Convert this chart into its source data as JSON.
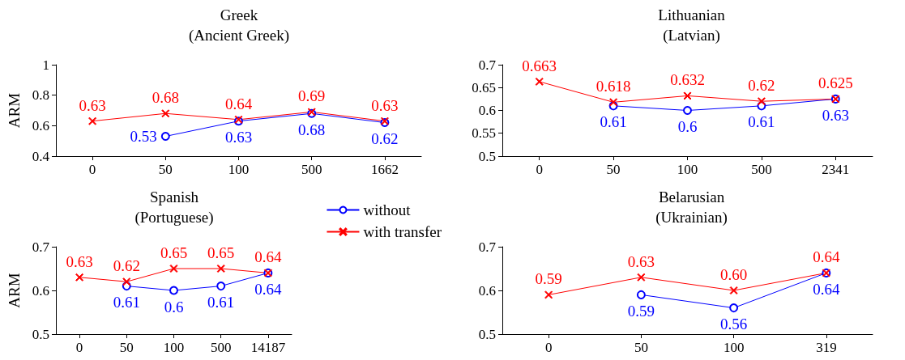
{
  "chart_data": [
    {
      "type": "line",
      "title": "Greek",
      "subtitle": "(Ancient Greek)",
      "ylabel": "ARM",
      "categories": [
        "0",
        "50",
        "100",
        "500",
        "1662"
      ],
      "ylim": [
        0.4,
        1
      ],
      "yticks": [
        0.4,
        0.6,
        0.8,
        1
      ],
      "grid": false,
      "legend": false,
      "series": [
        {
          "color": "#0000ff",
          "marker": "circle",
          "values": [
            null,
            0.53,
            0.63,
            0.68,
            0.62
          ],
          "value_labels": [
            null,
            "0.53",
            "0.63",
            "0.68",
            "0.62"
          ]
        },
        {
          "color": "#ff0000",
          "marker": "cross",
          "values": [
            0.63,
            0.68,
            0.64,
            0.69,
            0.63
          ],
          "value_labels": [
            "0.63",
            "0.68",
            "0.64",
            "0.69",
            "0.63"
          ]
        }
      ]
    },
    {
      "type": "line",
      "title": "Lithuanian",
      "subtitle": "(Latvian)",
      "categories": [
        "0",
        "50",
        "100",
        "500",
        "2341"
      ],
      "ylim": [
        0.5,
        0.7
      ],
      "yticks": [
        0.5,
        0.55,
        0.6,
        0.65,
        0.7
      ],
      "grid": false,
      "legend": false,
      "series": [
        {
          "color": "#0000ff",
          "marker": "circle",
          "values": [
            null,
            0.61,
            0.6,
            0.61,
            0.625
          ],
          "value_labels": [
            null,
            "0.61",
            "0.6",
            "0.61",
            "0.63"
          ]
        },
        {
          "color": "#ff0000",
          "marker": "cross",
          "values": [
            0.663,
            0.618,
            0.632,
            0.62,
            0.625
          ],
          "value_labels": [
            "0.663",
            "0.618",
            "0.632",
            "0.62",
            "0.625"
          ]
        }
      ]
    },
    {
      "type": "line",
      "title": "Spanish",
      "subtitle": "(Portuguese)",
      "ylabel": "ARM",
      "categories": [
        "0",
        "50",
        "100",
        "500",
        "14187"
      ],
      "ylim": [
        0.5,
        0.7
      ],
      "yticks": [
        0.5,
        0.6,
        0.7
      ],
      "grid": false,
      "legend": "right",
      "series": [
        {
          "name": "without",
          "color": "#0000ff",
          "marker": "circle",
          "values": [
            null,
            0.61,
            0.6,
            0.61,
            0.64
          ],
          "value_labels": [
            null,
            "0.61",
            "0.6",
            "0.61",
            "0.64"
          ]
        },
        {
          "name": "with transfer",
          "color": "#ff0000",
          "marker": "cross",
          "values": [
            0.63,
            0.62,
            0.65,
            0.65,
            0.64
          ],
          "value_labels": [
            "0.63",
            "0.62",
            "0.65",
            "0.65",
            "0.64"
          ]
        }
      ]
    },
    {
      "type": "line",
      "title": "Belarusian",
      "subtitle": "(Ukrainian)",
      "categories": [
        "0",
        "50",
        "100",
        "319"
      ],
      "ylim": [
        0.5,
        0.7
      ],
      "yticks": [
        0.5,
        0.6,
        0.7
      ],
      "grid": false,
      "legend": false,
      "series": [
        {
          "color": "#0000ff",
          "marker": "circle",
          "values": [
            null,
            0.59,
            0.56,
            0.64
          ],
          "value_labels": [
            null,
            "0.59",
            "0.56",
            "0.64"
          ]
        },
        {
          "color": "#ff0000",
          "marker": "cross",
          "values": [
            0.59,
            0.63,
            0.6,
            0.64
          ],
          "value_labels": [
            "0.59",
            "0.63",
            "0.60",
            "0.64"
          ]
        }
      ]
    }
  ]
}
